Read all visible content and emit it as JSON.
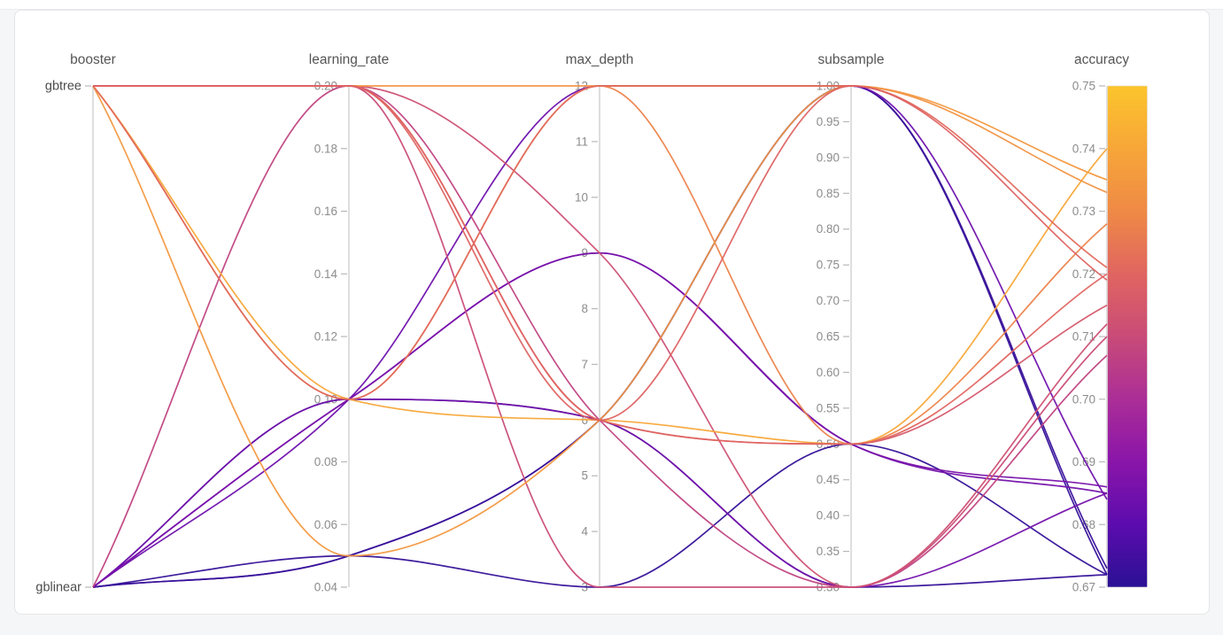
{
  "panel": {
    "background_color": "#f5f6f7",
    "card_color": "#ffffff"
  },
  "chart_data": {
    "type": "parallel-coordinates",
    "metric_name": "accuracy",
    "grid": false,
    "legend_position": "right-colorbar",
    "axes": [
      {
        "key": "booster",
        "label": "booster",
        "type": "categorical",
        "categories": [
          "gbtree",
          "gblinear"
        ],
        "ticks": [
          "gbtree",
          "gblinear"
        ]
      },
      {
        "key": "learning_rate",
        "label": "learning_rate",
        "type": "numeric",
        "min": 0.04,
        "max": 0.2,
        "ticks": [
          "0.20",
          "0.18",
          "0.16",
          "0.14",
          "0.12",
          "0.10",
          "0.08",
          "0.06",
          "0.04"
        ]
      },
      {
        "key": "max_depth",
        "label": "max_depth",
        "type": "numeric",
        "min": 3,
        "max": 12,
        "ticks": [
          "12",
          "11",
          "10",
          "9",
          "8",
          "7",
          "6",
          "5",
          "4",
          "3"
        ]
      },
      {
        "key": "subsample",
        "label": "subsample",
        "type": "numeric",
        "min": 0.3,
        "max": 1.0,
        "ticks": [
          "1.00",
          "0.95",
          "0.90",
          "0.85",
          "0.80",
          "0.75",
          "0.70",
          "0.65",
          "0.60",
          "0.55",
          "0.50",
          "0.45",
          "0.40",
          "0.35",
          "0.30"
        ]
      },
      {
        "key": "accuracy",
        "label": "accuracy",
        "type": "numeric",
        "min": 0.67,
        "max": 0.75,
        "colorbar": true,
        "ticks": [
          "0.75",
          "0.74",
          "0.73",
          "0.72",
          "0.71",
          "0.70",
          "0.69",
          "0.68",
          "0.67"
        ]
      }
    ],
    "colormap": {
      "stops": [
        {
          "value": 0.67,
          "color": "#2a1193"
        },
        {
          "value": 0.68,
          "color": "#5c0cae"
        },
        {
          "value": 0.69,
          "color": "#8a15a9"
        },
        {
          "value": 0.7,
          "color": "#ab2e97"
        },
        {
          "value": 0.71,
          "color": "#c94b78"
        },
        {
          "value": 0.72,
          "color": "#e06560"
        },
        {
          "value": 0.73,
          "color": "#ef8a46"
        },
        {
          "value": 0.74,
          "color": "#f7a638"
        },
        {
          "value": 0.75,
          "color": "#fcc52c"
        }
      ]
    },
    "trials": [
      {
        "booster": "gblinear",
        "learning_rate": 0.05,
        "max_depth": 6,
        "subsample": 1.0,
        "accuracy": 0.672
      },
      {
        "booster": "gblinear",
        "learning_rate": 0.05,
        "max_depth": 3,
        "subsample": 0.5,
        "accuracy": 0.672
      },
      {
        "booster": "gblinear",
        "learning_rate": 0.1,
        "max_depth": 6,
        "subsample": 0.3,
        "accuracy": 0.672
      },
      {
        "booster": "gblinear",
        "learning_rate": 0.05,
        "max_depth": 6,
        "subsample": 1.0,
        "accuracy": 0.673
      },
      {
        "booster": "gblinear",
        "learning_rate": 0.1,
        "max_depth": 12,
        "subsample": 1.0,
        "accuracy": 0.684
      },
      {
        "booster": "gblinear",
        "learning_rate": 0.1,
        "max_depth": 9,
        "subsample": 0.5,
        "accuracy": 0.685
      },
      {
        "booster": "gblinear",
        "learning_rate": 0.1,
        "max_depth": 6,
        "subsample": 0.3,
        "accuracy": 0.685
      },
      {
        "booster": "gblinear",
        "learning_rate": 0.1,
        "max_depth": 9,
        "subsample": 0.5,
        "accuracy": 0.686
      },
      {
        "booster": "gblinear",
        "learning_rate": 0.2,
        "max_depth": 6,
        "subsample": 0.3,
        "accuracy": 0.707
      },
      {
        "booster": "gbtree",
        "learning_rate": 0.2,
        "max_depth": 3,
        "subsample": 0.3,
        "accuracy": 0.71
      },
      {
        "booster": "gbtree",
        "learning_rate": 0.2,
        "max_depth": 9,
        "subsample": 0.3,
        "accuracy": 0.712
      },
      {
        "booster": "gbtree",
        "learning_rate": 0.1,
        "max_depth": 12,
        "subsample": 0.5,
        "accuracy": 0.728
      },
      {
        "booster": "gbtree",
        "learning_rate": 0.05,
        "max_depth": 6,
        "subsample": 1.0,
        "accuracy": 0.735
      },
      {
        "booster": "gbtree",
        "learning_rate": 0.1,
        "max_depth": 6,
        "subsample": 0.5,
        "accuracy": 0.74
      },
      {
        "booster": "gbtree",
        "learning_rate": 0.2,
        "max_depth": 12,
        "subsample": 1.0,
        "accuracy": 0.733
      },
      {
        "booster": "gbtree",
        "learning_rate": 0.2,
        "max_depth": 6,
        "subsample": 0.5,
        "accuracy": 0.715
      },
      {
        "booster": "gbtree",
        "learning_rate": 0.1,
        "max_depth": 12,
        "subsample": 1.0,
        "accuracy": 0.721
      },
      {
        "booster": "gbtree",
        "learning_rate": 0.2,
        "max_depth": 6,
        "subsample": 0.5,
        "accuracy": 0.72
      },
      {
        "booster": "gbtree",
        "learning_rate": 0.2,
        "max_depth": 6,
        "subsample": 1.0,
        "accuracy": 0.719
      }
    ]
  }
}
